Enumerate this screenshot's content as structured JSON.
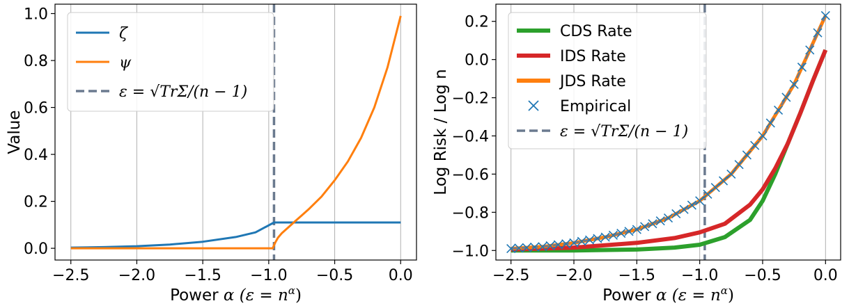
{
  "chart_data": [
    {
      "type": "line",
      "xlabel_text": "Power",
      "xlabel_math": "α   (ε = n",
      "xlabel_sup": "α",
      "xlabel_close": ")",
      "ylabel": "Value",
      "xlim": [
        -2.62,
        0.12
      ],
      "ylim": [
        -0.05,
        1.04
      ],
      "xticks": [
        -2.5,
        -2.0,
        -1.5,
        -1.0,
        -0.5,
        0.0
      ],
      "xtick_labels": [
        "−2.5",
        "−2.0",
        "−1.5",
        "−1.0",
        "−0.5",
        "0.0"
      ],
      "yticks": [
        0.0,
        0.2,
        0.4,
        0.6,
        0.8,
        1.0
      ],
      "ytick_labels": [
        "0.0",
        "0.2",
        "0.4",
        "0.6",
        "0.8",
        "1.0"
      ],
      "grid": "vertical",
      "legend_position": "top-left",
      "vline": {
        "x": -0.96,
        "color": "#6b7a8f",
        "style": "dashed"
      },
      "series": [
        {
          "name": "ζ",
          "color": "#1f77b4",
          "x": [
            -2.5,
            -2.25,
            -2.0,
            -1.75,
            -1.5,
            -1.25,
            -1.1,
            -0.96,
            -0.9,
            -0.75,
            -0.5,
            -0.25,
            0.0
          ],
          "y": [
            0.003,
            0.005,
            0.009,
            0.016,
            0.028,
            0.048,
            0.068,
            0.11,
            0.11,
            0.11,
            0.11,
            0.11,
            0.11
          ]
        },
        {
          "name": "ψ",
          "color": "#ff7f0e",
          "x": [
            -2.5,
            -2.0,
            -1.5,
            -1.0,
            -0.97,
            -0.95,
            -0.93,
            -0.9,
            -0.85,
            -0.8,
            -0.75,
            -0.7,
            -0.6,
            -0.5,
            -0.4,
            -0.3,
            -0.2,
            -0.1,
            0.0
          ],
          "y": [
            0.0,
            0.0,
            0.0,
            0.0,
            0.0,
            0.025,
            0.045,
            0.065,
            0.09,
            0.115,
            0.14,
            0.165,
            0.22,
            0.29,
            0.37,
            0.47,
            0.6,
            0.77,
            0.99
          ]
        }
      ],
      "legend": [
        {
          "label": "ζ",
          "color": "#1f77b4",
          "style": "solid"
        },
        {
          "label": "ψ",
          "color": "#ff7f0e",
          "style": "solid"
        },
        {
          "label": "ε = √TrΣ/(n − 1)",
          "color": "#6b7a8f",
          "style": "dashed"
        }
      ]
    },
    {
      "type": "line",
      "xlabel_text": "Power",
      "xlabel_math": "α   (ε = n",
      "xlabel_sup": "α",
      "xlabel_close": ")",
      "ylabel": "Log Risk / Log n",
      "xlim": [
        -2.62,
        0.12
      ],
      "ylim": [
        -1.05,
        0.29
      ],
      "xticks": [
        -2.5,
        -2.0,
        -1.5,
        -1.0,
        -0.5,
        0.0
      ],
      "xtick_labels": [
        "−2.5",
        "−2.0",
        "−1.5",
        "−1.0",
        "−0.5",
        "0.0"
      ],
      "yticks": [
        -1.0,
        -0.8,
        -0.6,
        -0.4,
        -0.2,
        0.0,
        0.2
      ],
      "ytick_labels": [
        "−1.0",
        "−0.8",
        "−0.6",
        "−0.4",
        "−0.2",
        "0.0",
        "0.2"
      ],
      "grid": "vertical",
      "legend_position": "top-left",
      "vline": {
        "x": -0.96,
        "color": "#6b7a8f",
        "style": "dashed"
      },
      "series": [
        {
          "name": "CDS Rate",
          "color": "#2ca02c",
          "x": [
            -2.5,
            -2.0,
            -1.5,
            -1.2,
            -1.0,
            -0.8,
            -0.6,
            -0.5,
            -0.4,
            -0.3,
            -0.2,
            -0.1,
            0.0
          ],
          "y": [
            -1.0,
            -1.0,
            -0.995,
            -0.985,
            -0.97,
            -0.93,
            -0.84,
            -0.74,
            -0.6,
            -0.44,
            -0.28,
            -0.11,
            0.05
          ]
        },
        {
          "name": "IDS Rate",
          "color": "#d62728",
          "x": [
            -2.5,
            -2.0,
            -1.5,
            -1.2,
            -1.0,
            -0.8,
            -0.6,
            -0.5,
            -0.4,
            -0.3,
            -0.2,
            -0.1,
            0.0
          ],
          "y": [
            -0.995,
            -0.985,
            -0.96,
            -0.935,
            -0.905,
            -0.86,
            -0.76,
            -0.68,
            -0.57,
            -0.44,
            -0.28,
            -0.11,
            0.05
          ]
        },
        {
          "name": "JDS Rate",
          "color": "#ff7f0e",
          "x": [
            -2.5,
            -2.25,
            -2.0,
            -1.75,
            -1.5,
            -1.25,
            -1.0,
            -0.75,
            -0.5,
            -0.25,
            0.0
          ],
          "y": [
            -0.99,
            -0.98,
            -0.96,
            -0.93,
            -0.89,
            -0.83,
            -0.74,
            -0.6,
            -0.4,
            -0.13,
            0.23
          ]
        },
        {
          "name": "Empirical",
          "color": "#1f77b4",
          "marker": "x",
          "x_start": -2.5,
          "x_step": 0.0625,
          "count": 41
        }
      ],
      "legend": [
        {
          "label": "CDS Rate",
          "color": "#2ca02c",
          "style": "solid"
        },
        {
          "label": "IDS Rate",
          "color": "#d62728",
          "style": "solid"
        },
        {
          "label": "JDS Rate",
          "color": "#ff7f0e",
          "style": "solid"
        },
        {
          "label": "Empirical",
          "color": "#1f77b4",
          "style": "marker"
        },
        {
          "label": "ε = √TrΣ/(n − 1)",
          "color": "#6b7a8f",
          "style": "dashed"
        }
      ]
    }
  ]
}
